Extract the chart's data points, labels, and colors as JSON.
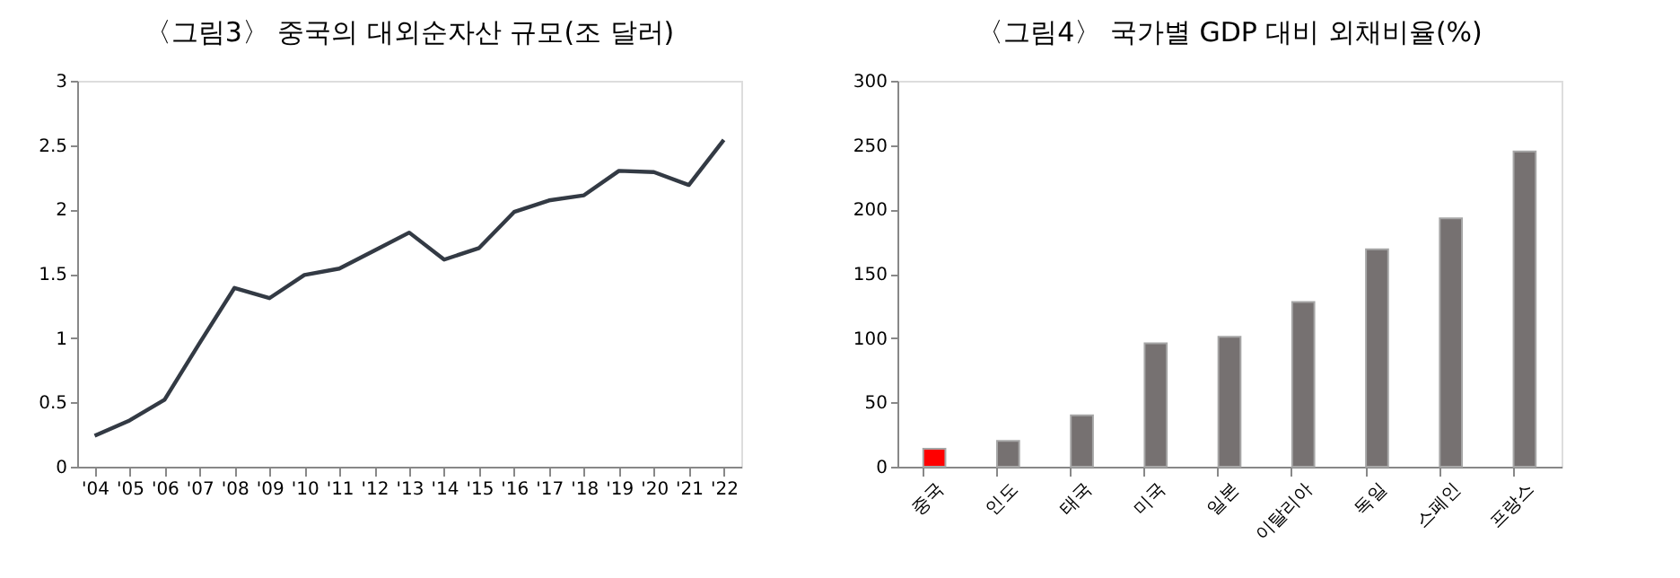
{
  "chart_data": [
    {
      "type": "line",
      "title": "〈그림3〉 중국의 대외순자산 규모(조 달러)",
      "categories": [
        "'04",
        "'05",
        "'06",
        "'07",
        "'08",
        "'09",
        "'10",
        "'11",
        "'12",
        "'13",
        "'14",
        "'15",
        "'16",
        "'17",
        "'18",
        "'19",
        "'20",
        "'21",
        "'22"
      ],
      "series": [
        {
          "color": "#333a44",
          "values": [
            0.24,
            0.36,
            0.52,
            0.96,
            1.39,
            1.31,
            1.49,
            1.54,
            1.68,
            1.82,
            1.61,
            1.7,
            1.98,
            2.07,
            2.11,
            2.3,
            2.29,
            2.19,
            2.54
          ]
        }
      ],
      "ylim": [
        0,
        3
      ],
      "yticks": [
        0,
        0.5,
        1,
        1.5,
        2,
        2.5,
        3
      ],
      "grid": false,
      "marker": "none",
      "line_style": "solid"
    },
    {
      "type": "bar",
      "title": "〈그림4〉 국가별 GDP 대비 외채비율(%)",
      "categories": [
        "중국",
        "인도",
        "태국",
        "미국",
        "일본",
        "이탈리아",
        "독일",
        "스페인",
        "프랑스"
      ],
      "values": [
        14,
        20,
        40,
        96,
        101,
        128,
        169,
        193,
        245
      ],
      "colors": [
        "#ff0000",
        "#767171",
        "#767171",
        "#767171",
        "#767171",
        "#767171",
        "#767171",
        "#767171",
        "#767171"
      ],
      "ylim": [
        0,
        300
      ],
      "yticks": [
        0,
        50,
        100,
        150,
        200,
        250,
        300
      ],
      "grid": false
    }
  ]
}
